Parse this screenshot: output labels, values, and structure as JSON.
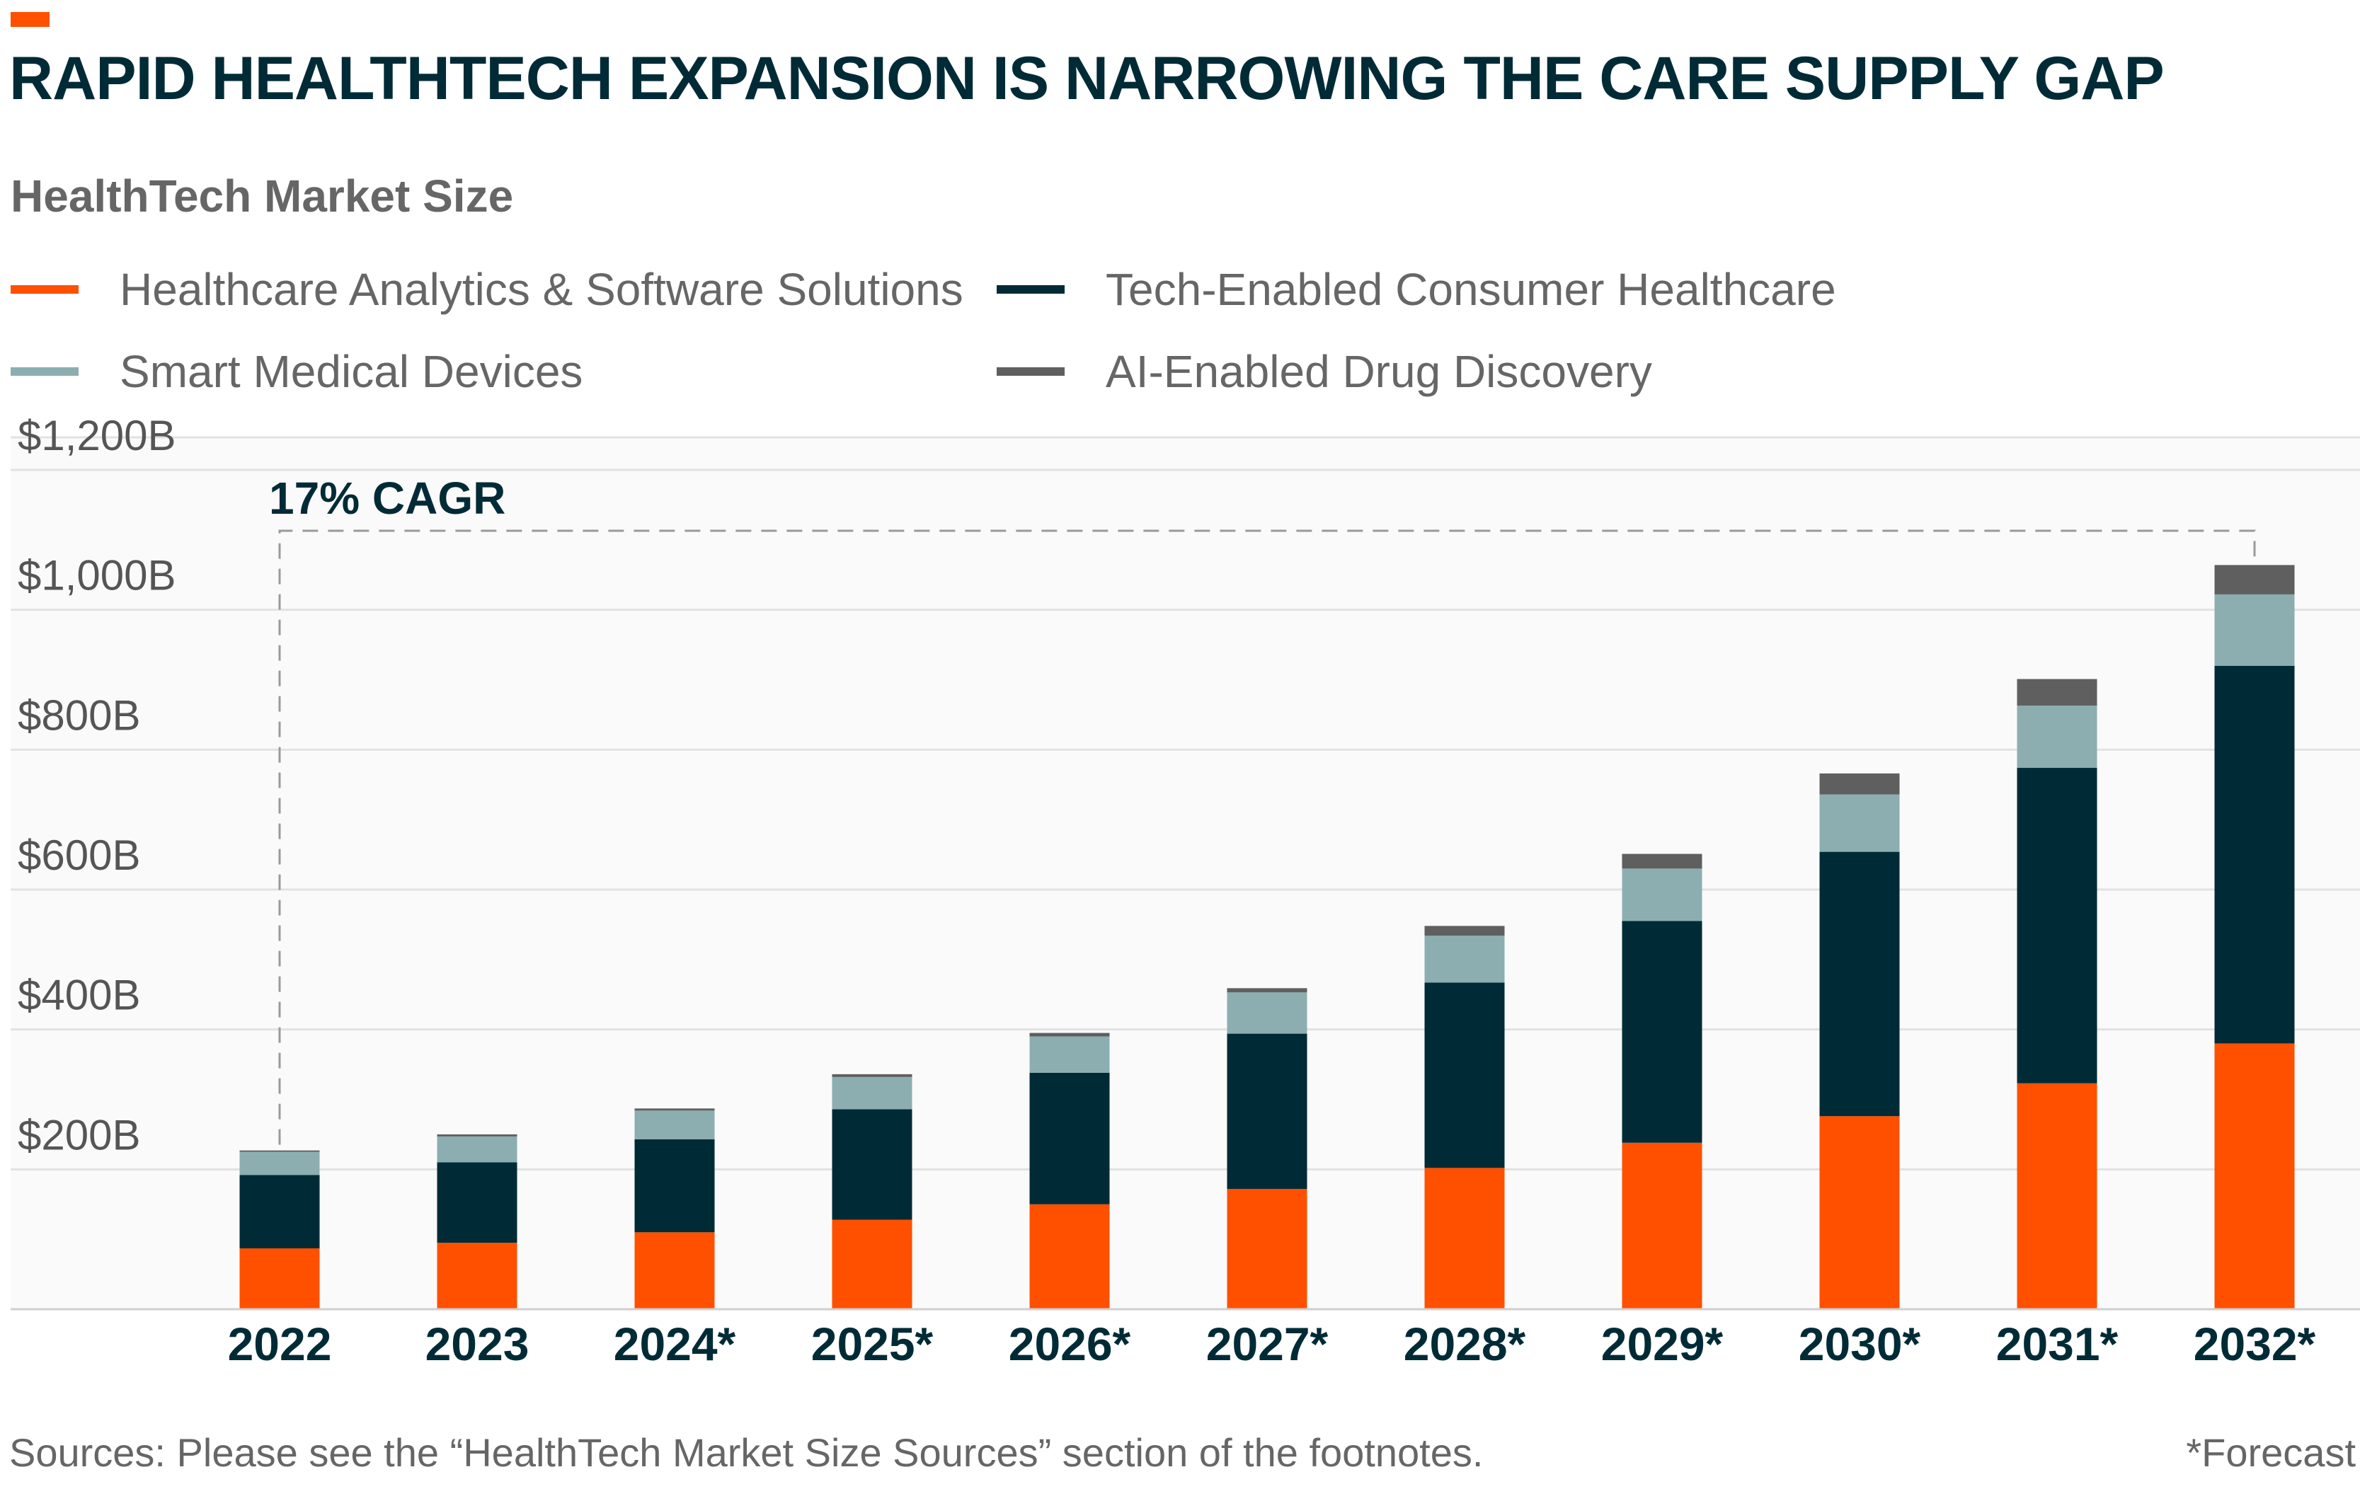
{
  "title": "RAPID HEALTHTECH EXPANSION IS NARROWING THE CARE SUPPLY GAP",
  "subtitle": "HealthTech Market Size",
  "legend": [
    {
      "label": "Healthcare Analytics & Software Solutions",
      "color": "#ff5000"
    },
    {
      "label": "Tech-Enabled Consumer Healthcare",
      "color": "#002b36"
    },
    {
      "label": "Smart Medical Devices",
      "color": "#8caeb0"
    },
    {
      "label": "AI-Enabled Drug Discovery",
      "color": "#5f5f5f"
    }
  ],
  "annotation": "17% CAGR",
  "footnote": "Sources: Please see the “HealthTech Market Size Sources” section of the footnotes.",
  "forecast_note": "*Forecast",
  "chart_data": {
    "type": "bar",
    "stacked": true,
    "categories": [
      "2022",
      "2023",
      "2024*",
      "2025*",
      "2026*",
      "2027*",
      "2028*",
      "2029*",
      "2030*",
      "2031*",
      "2032*"
    ],
    "series": [
      {
        "name": "Healthcare Analytics & Software Solutions",
        "color": "#ff5000",
        "values": [
          87,
          95,
          110,
          128,
          150,
          172,
          202,
          238,
          276,
          323,
          380
        ]
      },
      {
        "name": "Tech-Enabled Consumer Healthcare",
        "color": "#002b36",
        "values": [
          105,
          115,
          133,
          158,
          188,
          222,
          265,
          317,
          378,
          451,
          540
        ]
      },
      {
        "name": "Smart Medical Devices",
        "color": "#8caeb0",
        "values": [
          33,
          37,
          41,
          46,
          52,
          59,
          67,
          75,
          82,
          89,
          102
        ]
      },
      {
        "name": "AI-Enabled Drug Discovery",
        "color": "#5f5f5f",
        "values": [
          2,
          3,
          3,
          4,
          5,
          6,
          14,
          21,
          30,
          38,
          42
        ]
      }
    ],
    "ylim": [
      0,
      1200
    ],
    "yticks": [
      0,
      200,
      400,
      600,
      800,
      1000,
      1200
    ],
    "ytick_labels": [
      "",
      "$200B",
      "$400B",
      "$600B",
      "$800B",
      "$1,000B",
      "$1,200B"
    ],
    "xlabel": "",
    "ylabel": "",
    "grid": true,
    "legend_position": "top"
  }
}
